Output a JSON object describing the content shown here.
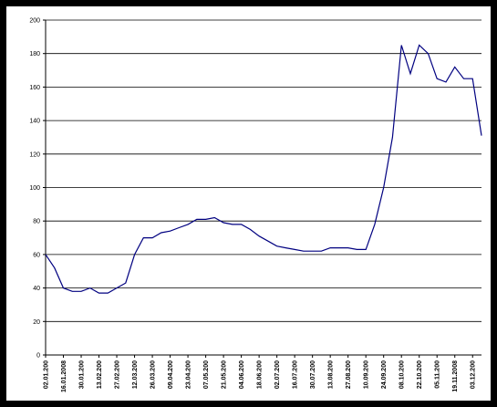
{
  "chart_data": {
    "type": "line",
    "categories": [
      "02.01.200",
      null,
      "16.01.2008",
      null,
      "30.01.200",
      null,
      "13.02.200",
      null,
      "27.02.200",
      null,
      "12.03.200",
      null,
      "26.03.200",
      null,
      "09.04.200",
      null,
      "23.04.200",
      null,
      "07.05.200",
      null,
      "21.05.200",
      null,
      "04.06.200",
      null,
      "18.06.200",
      null,
      "02.07.200",
      null,
      "16.07.200",
      null,
      "30.07.200",
      null,
      "13.08.200",
      null,
      "27.08.200",
      null,
      "10.09.200",
      null,
      "24.09.200",
      null,
      "08.10.200",
      null,
      "22.10.200",
      null,
      "05.11.200",
      null,
      "19.11.2008",
      null,
      "03.12.200",
      null
    ],
    "values": [
      60,
      52,
      40,
      38,
      38,
      40,
      37,
      37,
      40,
      43,
      60,
      70,
      70,
      73,
      74,
      76,
      78,
      81,
      81,
      82,
      79,
      78,
      78,
      75,
      71,
      68,
      65,
      64,
      63,
      62,
      62,
      62,
      64,
      64,
      64,
      63,
      63,
      78,
      100,
      130,
      185,
      168,
      185,
      180,
      165,
      163,
      172,
      165,
      165,
      131
    ],
    "color": "#000080",
    "ylim": [
      0,
      200
    ],
    "yticks": [
      0,
      20,
      40,
      60,
      80,
      100,
      120,
      140,
      160,
      180,
      200
    ],
    "grid": true
  }
}
